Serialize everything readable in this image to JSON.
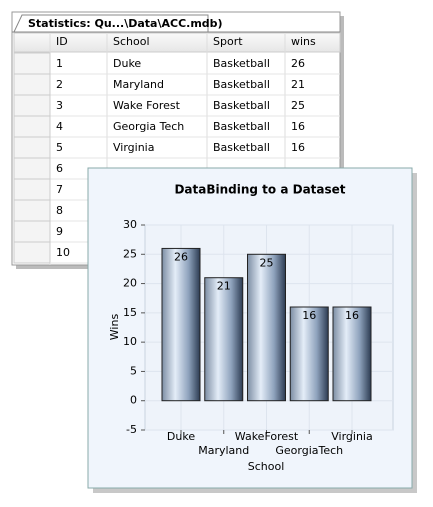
{
  "table": {
    "title": "Statistics: Qu...\\Data\\ACC.mdb)",
    "columns": [
      "ID",
      "School",
      "Sport",
      "wins"
    ],
    "rows": [
      [
        "1",
        "Duke",
        "Basketball",
        "26"
      ],
      [
        "2",
        "Maryland",
        "Basketball",
        "21"
      ],
      [
        "3",
        "Wake Forest",
        "Basketball",
        "25"
      ],
      [
        "4",
        "Georgia Tech",
        "Basketball",
        "16"
      ],
      [
        "5",
        "Virginia",
        "Basketball",
        "16"
      ],
      [
        "6"
      ],
      [
        "7"
      ],
      [
        "8"
      ],
      [
        "9"
      ],
      [
        "10"
      ]
    ]
  },
  "chart_data": {
    "type": "bar",
    "title": "DataBinding to a Dataset",
    "x_label": "School",
    "y_label": "Wins",
    "categories": [
      "Duke",
      "Maryland",
      "WakeForest",
      "GeorgiaTech",
      "Virginia"
    ],
    "values": [
      26,
      21,
      25,
      16,
      16
    ],
    "ylim": [
      -5,
      30
    ],
    "yticks": [
      -5,
      0,
      5,
      10,
      15,
      20,
      25,
      30
    ],
    "grid": true
  }
}
